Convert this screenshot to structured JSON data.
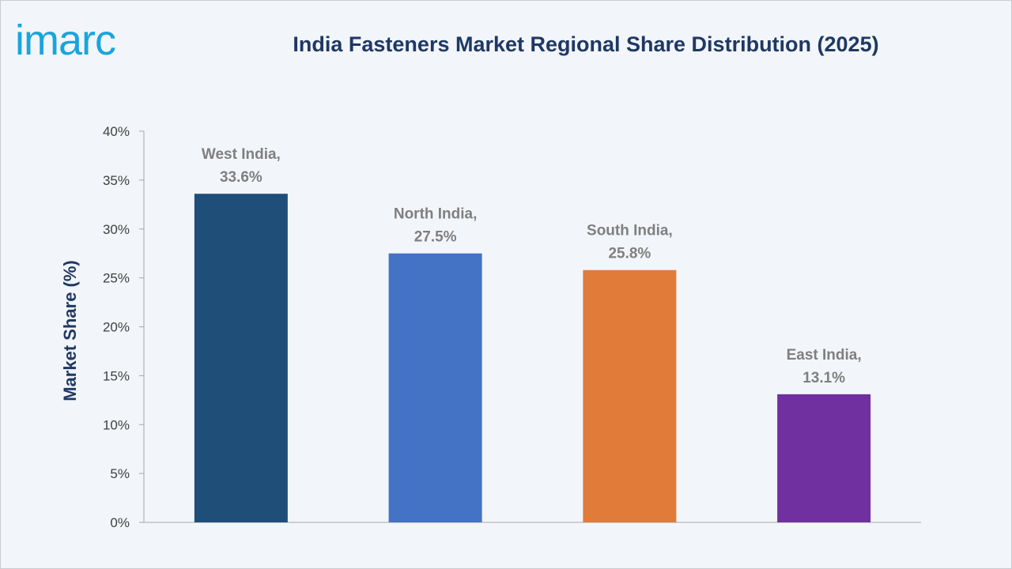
{
  "brand": {
    "logo_text": "imarc",
    "logo_color": "#19a5dc"
  },
  "chart_data": {
    "type": "bar",
    "title": "India Fasteners Market Regional Share Distribution (2025)",
    "xlabel": "",
    "ylabel": "Market Share (%)",
    "ylim": [
      0,
      40
    ],
    "yticks": [
      0,
      5,
      10,
      15,
      20,
      25,
      30,
      35,
      40
    ],
    "ytick_suffix": "%",
    "grid": false,
    "categories": [
      "West India",
      "North India",
      "South India",
      "East India"
    ],
    "values": [
      33.6,
      27.5,
      25.8,
      13.1
    ],
    "colors": [
      "#1f4e79",
      "#4472c4",
      "#e07b39",
      "#7030a0"
    ],
    "data_labels": [
      [
        "West India,",
        "33.6%"
      ],
      [
        "North India,",
        "27.5%"
      ],
      [
        "South India,",
        "25.8%"
      ],
      [
        "East India,",
        "13.1%"
      ]
    ]
  }
}
